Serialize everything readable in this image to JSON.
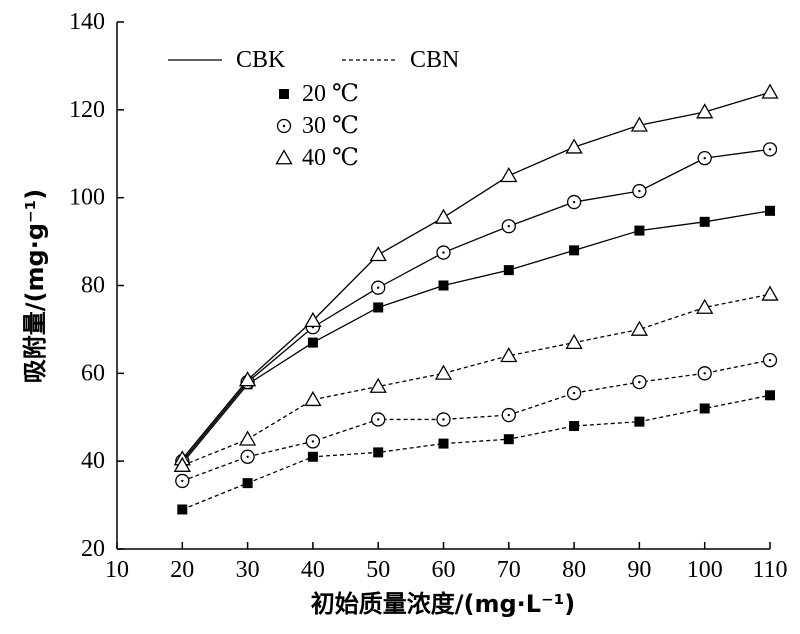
{
  "chart_data": {
    "type": "line",
    "xlabel": "初始质量浓度/(mg·L⁻¹)",
    "ylabel": "吸附量/(mg·g⁻¹)",
    "xlim": [
      10,
      110
    ],
    "ylim": [
      20,
      140
    ],
    "xticks": [
      10,
      20,
      30,
      40,
      50,
      60,
      70,
      80,
      90,
      100,
      110
    ],
    "yticks": [
      20,
      40,
      60,
      80,
      100,
      120,
      140
    ],
    "x": [
      20,
      30,
      40,
      50,
      60,
      70,
      80,
      90,
      100,
      110
    ],
    "grid": false,
    "legend": {
      "placement": "top-left",
      "line_styles": [
        {
          "label": "CBK",
          "style": "solid"
        },
        {
          "label": "CBN",
          "style": "dashed"
        }
      ],
      "markers": [
        {
          "label": "20 ℃",
          "marker": "square"
        },
        {
          "label": "30 ℃",
          "marker": "circle"
        },
        {
          "label": "40 ℃",
          "marker": "triangle"
        }
      ]
    },
    "series": [
      {
        "group": "CBK",
        "temp": "20 ℃",
        "style": "solid",
        "marker": "square",
        "values": [
          39.5,
          57.5,
          67,
          75,
          80,
          83.5,
          88,
          92.5,
          94.5,
          97
        ]
      },
      {
        "group": "CBK",
        "temp": "30 ℃",
        "style": "solid",
        "marker": "circle",
        "values": [
          40,
          58,
          70.5,
          79.5,
          87.5,
          93.5,
          99,
          101.5,
          109,
          111
        ]
      },
      {
        "group": "CBK",
        "temp": "40 ℃",
        "style": "solid",
        "marker": "triangle",
        "values": [
          40.5,
          58.5,
          72,
          87,
          95.5,
          105,
          111.5,
          116.5,
          119.5,
          124
        ]
      },
      {
        "group": "CBN",
        "temp": "20 ℃",
        "style": "dashed",
        "marker": "square",
        "values": [
          29,
          35,
          41,
          42,
          44,
          45,
          48,
          49,
          52,
          55
        ]
      },
      {
        "group": "CBN",
        "temp": "30 ℃",
        "style": "dashed",
        "marker": "circle",
        "values": [
          35.5,
          41,
          44.5,
          49.5,
          49.5,
          50.5,
          55.5,
          58,
          60,
          63
        ]
      },
      {
        "group": "CBN",
        "temp": "40 ℃",
        "style": "dashed",
        "marker": "triangle",
        "values": [
          39,
          45,
          54,
          57,
          60,
          64,
          67,
          70,
          75,
          78
        ]
      }
    ]
  }
}
